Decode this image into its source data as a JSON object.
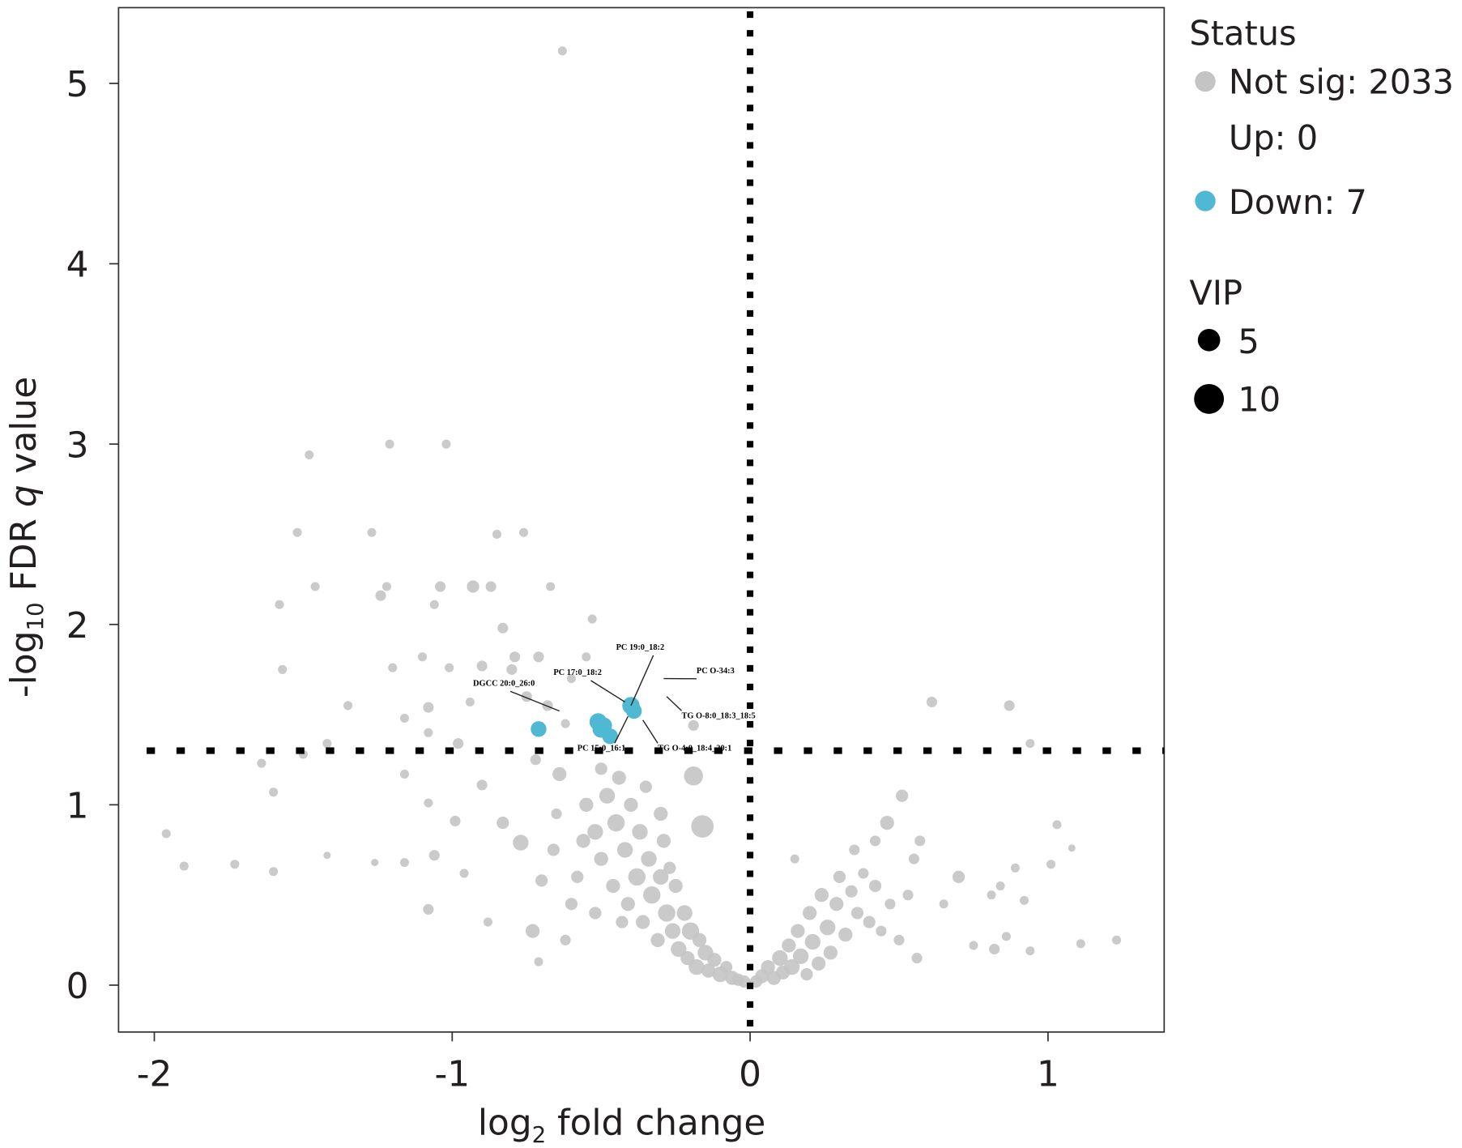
{
  "chart_data": {
    "type": "scatter",
    "title": "",
    "xlabel": "log",
    "xlabel_sub": "2",
    "xlabel_rest": " fold change",
    "ylabel_pre": "-log",
    "ylabel_sub": "10",
    "ylabel_mid": " FDR ",
    "ylabel_q": "q",
    "ylabel_post": " value",
    "xlim": [
      -2.12,
      1.39
    ],
    "ylim": [
      -0.26,
      5.42
    ],
    "xticks": [
      -2,
      -1,
      0,
      1
    ],
    "xtick_labels": [
      "-2",
      "-1",
      "0",
      "1"
    ],
    "yticks": [
      0,
      1,
      2,
      3,
      4,
      5
    ],
    "ytick_labels": [
      "0",
      "1",
      "2",
      "3",
      "4",
      "5"
    ],
    "grid": false,
    "thresholds": {
      "x": 0,
      "y": 1.3
    },
    "colors": {
      "not_sig": "#c4c4c4",
      "down": "#4fb8d3",
      "up": "#e05a5a",
      "threshold": "#000000"
    },
    "legend": {
      "placement": "right",
      "status_title": "Status",
      "status_items": [
        {
          "label": "Not sig: 2033",
          "color": "#c4c4c4",
          "shown_marker": true
        },
        {
          "label": "Up: 0",
          "color": "",
          "shown_marker": false
        },
        {
          "label": "Down: 7",
          "color": "#4fb8d3",
          "shown_marker": true
        }
      ],
      "vip_title": "VIP",
      "vip_items": [
        {
          "label": "5",
          "vip": 5
        },
        {
          "label": "10",
          "vip": 10
        }
      ]
    },
    "series": [
      {
        "name": "Not sig: 2033",
        "points_note_format": "[log2FC, -log10 q, VIP]",
        "points": [
          [
            -0.63,
            5.18,
            2
          ],
          [
            -1.21,
            3.0,
            2
          ],
          [
            -1.02,
            3.0,
            2
          ],
          [
            -1.48,
            2.94,
            2
          ],
          [
            -1.52,
            2.51,
            2
          ],
          [
            -1.27,
            2.51,
            2
          ],
          [
            -0.85,
            2.5,
            2
          ],
          [
            -0.76,
            2.51,
            2
          ],
          [
            -1.46,
            2.21,
            2
          ],
          [
            -1.22,
            2.21,
            2
          ],
          [
            -1.24,
            2.16,
            3
          ],
          [
            -1.04,
            2.21,
            3
          ],
          [
            -0.93,
            2.21,
            4
          ],
          [
            -0.87,
            2.21,
            3
          ],
          [
            -0.67,
            2.21,
            2
          ],
          [
            -1.58,
            2.11,
            2
          ],
          [
            -1.06,
            2.11,
            2
          ],
          [
            -0.83,
            1.98,
            3
          ],
          [
            -0.53,
            2.03,
            2
          ],
          [
            -1.57,
            1.75,
            2
          ],
          [
            -1.2,
            1.76,
            2
          ],
          [
            -1.1,
            1.82,
            2
          ],
          [
            -1.01,
            1.76,
            2
          ],
          [
            -0.9,
            1.77,
            3
          ],
          [
            -0.79,
            1.82,
            3
          ],
          [
            -0.71,
            1.82,
            3
          ],
          [
            -0.55,
            1.82,
            2
          ],
          [
            -0.8,
            1.75,
            3
          ],
          [
            -1.35,
            1.55,
            2
          ],
          [
            -1.16,
            1.48,
            2
          ],
          [
            -1.08,
            1.54,
            3
          ],
          [
            -0.94,
            1.57,
            2
          ],
          [
            -0.75,
            1.6,
            3
          ],
          [
            -0.6,
            1.7,
            2
          ],
          [
            -0.68,
            1.55,
            3
          ],
          [
            -0.62,
            1.45,
            2
          ],
          [
            -1.42,
            1.34,
            2
          ],
          [
            -1.5,
            1.28,
            2
          ],
          [
            -1.64,
            1.23,
            2
          ],
          [
            -1.6,
            1.07,
            2
          ],
          [
            -1.08,
            1.4,
            2
          ],
          [
            -0.98,
            1.34,
            3
          ],
          [
            -1.16,
            1.17,
            2
          ],
          [
            -1.08,
            1.01,
            2
          ],
          [
            -0.99,
            0.91,
            3
          ],
          [
            -0.9,
            1.11,
            3
          ],
          [
            -1.96,
            0.84,
            2
          ],
          [
            -1.9,
            0.66,
            2
          ],
          [
            -1.73,
            0.67,
            2
          ],
          [
            -1.6,
            0.63,
            2
          ],
          [
            -1.42,
            0.72,
            1
          ],
          [
            -1.26,
            0.68,
            1
          ],
          [
            -1.16,
            0.68,
            2
          ],
          [
            -1.06,
            0.72,
            3
          ],
          [
            -1.08,
            0.42,
            3
          ],
          [
            -0.96,
            0.62,
            2
          ],
          [
            -0.88,
            0.35,
            2
          ],
          [
            -0.71,
            0.13,
            2
          ],
          [
            -0.19,
            1.16,
            8
          ],
          [
            -0.16,
            0.88,
            10
          ],
          [
            -0.64,
            1.17,
            5
          ],
          [
            -0.77,
            0.79,
            6
          ],
          [
            -0.19,
            1.44,
            3
          ],
          [
            -0.83,
            0.9,
            4
          ],
          [
            -0.72,
            1.25,
            3
          ],
          [
            -0.7,
            0.58,
            4
          ],
          [
            -0.73,
            0.3,
            5
          ],
          [
            -0.62,
            0.25,
            3
          ],
          [
            -0.6,
            0.45,
            4
          ],
          [
            -0.66,
            0.75,
            4
          ],
          [
            -0.55,
            1.0,
            5
          ],
          [
            -0.52,
            0.85,
            6
          ],
          [
            -0.5,
            0.7,
            5
          ],
          [
            -0.48,
            1.05,
            6
          ],
          [
            -0.46,
            0.55,
            5
          ],
          [
            -0.45,
            0.9,
            7
          ],
          [
            -0.42,
            0.75,
            6
          ],
          [
            -0.41,
            0.45,
            5
          ],
          [
            -0.4,
            1.0,
            5
          ],
          [
            -0.38,
            0.6,
            7
          ],
          [
            -0.37,
            0.85,
            6
          ],
          [
            -0.36,
            0.35,
            5
          ],
          [
            -0.34,
            0.7,
            6
          ],
          [
            -0.33,
            0.5,
            7
          ],
          [
            -0.31,
            0.25,
            5
          ],
          [
            -0.3,
            0.6,
            6
          ],
          [
            -0.29,
            0.8,
            5
          ],
          [
            -0.28,
            0.4,
            7
          ],
          [
            -0.26,
            0.3,
            6
          ],
          [
            -0.25,
            0.55,
            5
          ],
          [
            -0.24,
            0.2,
            6
          ],
          [
            -0.22,
            0.4,
            6
          ],
          [
            -0.21,
            0.15,
            5
          ],
          [
            -0.2,
            0.3,
            7
          ],
          [
            -0.18,
            0.1,
            6
          ],
          [
            -0.17,
            0.25,
            5
          ],
          [
            -0.15,
            0.18,
            6
          ],
          [
            -0.14,
            0.08,
            5
          ],
          [
            -0.12,
            0.14,
            5
          ],
          [
            -0.1,
            0.06,
            6
          ],
          [
            -0.08,
            0.1,
            4
          ],
          [
            -0.06,
            0.04,
            5
          ],
          [
            -0.04,
            0.03,
            4
          ],
          [
            -0.02,
            0.02,
            4
          ],
          [
            -0.5,
            1.2,
            4
          ],
          [
            -0.44,
            1.15,
            5
          ],
          [
            -0.58,
            0.6,
            4
          ],
          [
            -0.56,
            0.8,
            5
          ],
          [
            -0.35,
            1.1,
            4
          ],
          [
            -0.3,
            0.95,
            5
          ],
          [
            -0.27,
            0.65,
            4
          ],
          [
            -0.43,
            0.35,
            4
          ],
          [
            -0.52,
            0.4,
            4
          ],
          [
            -0.65,
            0.95,
            3
          ],
          [
            0.02,
            0.02,
            4
          ],
          [
            0.04,
            0.05,
            5
          ],
          [
            0.06,
            0.1,
            5
          ],
          [
            0.08,
            0.04,
            5
          ],
          [
            0.1,
            0.15,
            6
          ],
          [
            0.11,
            0.07,
            5
          ],
          [
            0.13,
            0.22,
            5
          ],
          [
            0.14,
            0.1,
            6
          ],
          [
            0.16,
            0.3,
            5
          ],
          [
            0.17,
            0.16,
            6
          ],
          [
            0.19,
            0.06,
            4
          ],
          [
            0.2,
            0.4,
            5
          ],
          [
            0.21,
            0.24,
            6
          ],
          [
            0.23,
            0.12,
            5
          ],
          [
            0.24,
            0.5,
            5
          ],
          [
            0.26,
            0.32,
            6
          ],
          [
            0.27,
            0.18,
            5
          ],
          [
            0.29,
            0.45,
            5
          ],
          [
            0.3,
            0.6,
            4
          ],
          [
            0.32,
            0.28,
            5
          ],
          [
            0.34,
            0.52,
            4
          ],
          [
            0.36,
            0.4,
            4
          ],
          [
            0.38,
            0.62,
            3
          ],
          [
            0.4,
            0.35,
            4
          ],
          [
            0.42,
            0.55,
            4
          ],
          [
            0.44,
            0.3,
            3
          ],
          [
            0.47,
            0.45,
            3
          ],
          [
            0.5,
            0.25,
            3
          ],
          [
            0.53,
            0.5,
            3
          ],
          [
            0.56,
            0.15,
            3
          ],
          [
            0.61,
            1.57,
            3
          ],
          [
            0.87,
            1.55,
            3
          ],
          [
            0.94,
            1.34,
            2
          ],
          [
            0.51,
            1.05,
            4
          ],
          [
            0.46,
            0.9,
            5
          ],
          [
            1.03,
            0.89,
            2
          ],
          [
            1.08,
            0.76,
            1
          ],
          [
            1.01,
            0.67,
            2
          ],
          [
            0.57,
            0.8,
            3
          ],
          [
            0.7,
            0.6,
            4
          ],
          [
            0.81,
            0.5,
            2
          ],
          [
            0.92,
            0.47,
            2
          ],
          [
            0.86,
            0.27,
            2
          ],
          [
            0.94,
            0.19,
            2
          ],
          [
            1.11,
            0.23,
            2
          ],
          [
            1.23,
            0.25,
            2
          ],
          [
            0.75,
            0.22,
            2
          ],
          [
            0.82,
            0.2,
            3
          ],
          [
            0.89,
            0.65,
            2
          ],
          [
            0.84,
            0.55,
            2
          ],
          [
            0.42,
            0.8,
            3
          ],
          [
            0.55,
            0.7,
            3
          ],
          [
            0.65,
            0.45,
            2
          ],
          [
            0.35,
            0.75,
            3
          ],
          [
            0.15,
            0.7,
            2
          ]
        ]
      },
      {
        "name": "Down: 7",
        "points": [
          [
            -0.71,
            1.42,
            6
          ],
          [
            -0.51,
            1.46,
            7
          ],
          [
            -0.5,
            1.42,
            7
          ],
          [
            -0.47,
            1.38,
            6
          ],
          [
            -0.49,
            1.44,
            6
          ],
          [
            -0.4,
            1.55,
            7
          ],
          [
            -0.39,
            1.52,
            6
          ]
        ]
      }
    ],
    "annotations": [
      {
        "text": "PC 19:0_18:2",
        "x": -0.4,
        "y": 1.55,
        "lx": -0.45,
        "ly": 1.86
      },
      {
        "text": "PC 17:0_18:2",
        "x": -0.42,
        "y": 1.57,
        "lx": -0.66,
        "ly": 1.72
      },
      {
        "text": "DGCC 20:0_26:0",
        "x": -0.64,
        "y": 1.52,
        "lx": -0.93,
        "ly": 1.66
      },
      {
        "text": "PC O-34:3",
        "x": -0.29,
        "y": 1.7,
        "lx": -0.18,
        "ly": 1.73
      },
      {
        "text": "TG O-8:0_18:3_18:5",
        "x": -0.28,
        "y": 1.6,
        "lx": -0.23,
        "ly": 1.48
      },
      {
        "text": "PC 15:0_16:1",
        "x": -0.41,
        "y": 1.49,
        "lx": -0.58,
        "ly": 1.3
      },
      {
        "text": "TG O-4:0_18:4_20:1",
        "x": -0.36,
        "y": 1.47,
        "lx": -0.31,
        "ly": 1.3
      }
    ]
  }
}
